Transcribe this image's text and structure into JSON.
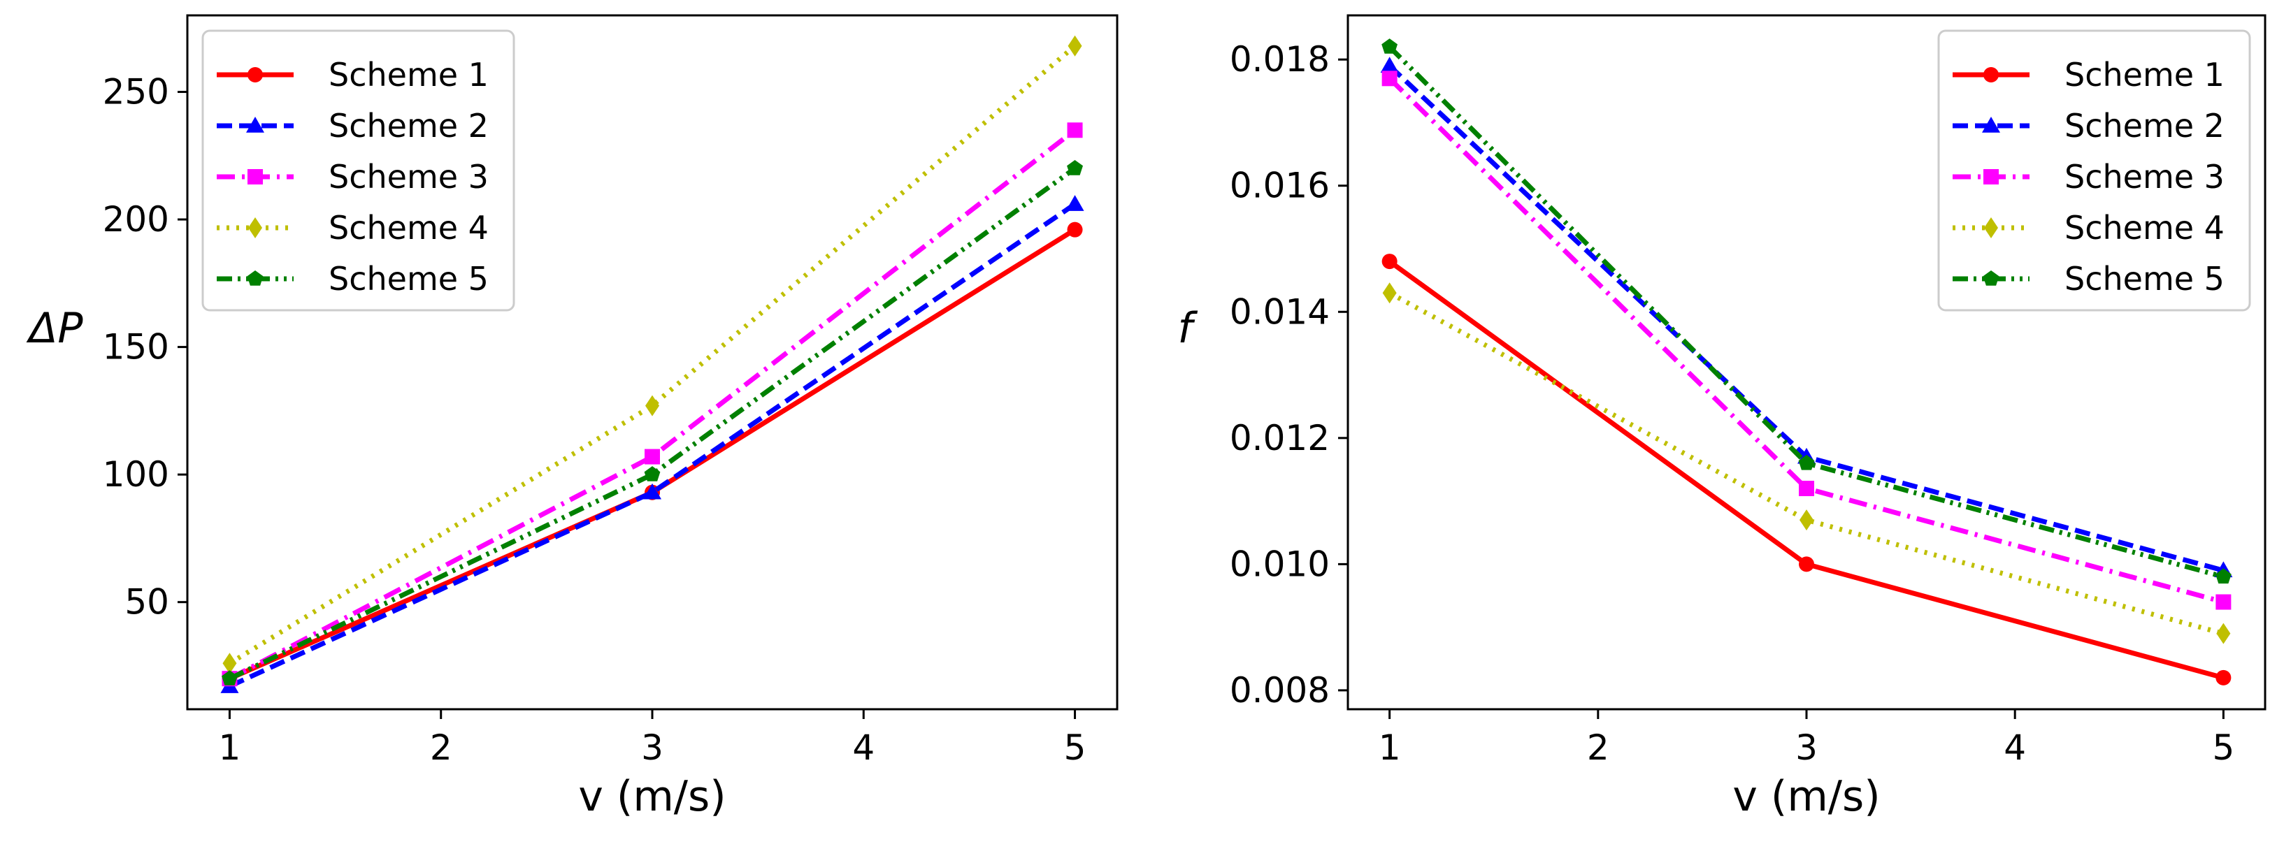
{
  "chart_data": [
    {
      "type": "line",
      "title": "",
      "xlabel": "v (m/s)",
      "ylabel": "ΔP",
      "x": [
        1,
        3,
        5
      ],
      "xlim": [
        0.8,
        5.2
      ],
      "ylim": [
        8,
        280
      ],
      "xticks": [
        1,
        2,
        3,
        4,
        5
      ],
      "yticks": [
        50,
        100,
        150,
        200,
        250
      ],
      "ytick_labels": [
        "50",
        "100",
        "150",
        "200",
        "250"
      ],
      "legend": {
        "placement": "top-left"
      },
      "series": [
        {
          "name": "Scheme 1",
          "values": [
            20,
            93,
            196
          ],
          "color": "#ff0000",
          "dash": "solid",
          "marker": "circle"
        },
        {
          "name": "Scheme 2",
          "values": [
            17,
            93,
            206
          ],
          "color": "#0000ff",
          "dash": "dashed",
          "marker": "triangle"
        },
        {
          "name": "Scheme 3",
          "values": [
            20,
            107,
            235
          ],
          "color": "#ff00ff",
          "dash": "dashdot",
          "marker": "square"
        },
        {
          "name": "Scheme 4",
          "values": [
            26,
            127,
            268
          ],
          "color": "#bfbf00",
          "dash": "dotted",
          "marker": "diamond"
        },
        {
          "name": "Scheme 5",
          "values": [
            20,
            100,
            220
          ],
          "color": "#008000",
          "dash": "dashdotdot",
          "marker": "pentagon"
        }
      ]
    },
    {
      "type": "line",
      "title": "",
      "xlabel": "v (m/s)",
      "ylabel": "f",
      "x": [
        1,
        3,
        5
      ],
      "xlim": [
        0.8,
        5.2
      ],
      "ylim": [
        0.0077,
        0.0187
      ],
      "xticks": [
        1,
        2,
        3,
        4,
        5
      ],
      "yticks": [
        0.008,
        0.01,
        0.012,
        0.014,
        0.016,
        0.018
      ],
      "ytick_labels": [
        "0.008",
        "0.010",
        "0.012",
        "0.014",
        "0.016",
        "0.018"
      ],
      "legend": {
        "placement": "top-right"
      },
      "series": [
        {
          "name": "Scheme 1",
          "values": [
            0.0148,
            0.01,
            0.0082
          ],
          "color": "#ff0000",
          "dash": "solid",
          "marker": "circle"
        },
        {
          "name": "Scheme 2",
          "values": [
            0.0179,
            0.0117,
            0.0099
          ],
          "color": "#0000ff",
          "dash": "dashed",
          "marker": "triangle"
        },
        {
          "name": "Scheme 3",
          "values": [
            0.0177,
            0.0112,
            0.0094
          ],
          "color": "#ff00ff",
          "dash": "dashdot",
          "marker": "square"
        },
        {
          "name": "Scheme 4",
          "values": [
            0.0143,
            0.0107,
            0.0089
          ],
          "color": "#bfbf00",
          "dash": "dotted",
          "marker": "diamond"
        },
        {
          "name": "Scheme 5",
          "values": [
            0.0182,
            0.0116,
            0.0098
          ],
          "color": "#008000",
          "dash": "dashdotdot",
          "marker": "pentagon"
        }
      ]
    }
  ]
}
